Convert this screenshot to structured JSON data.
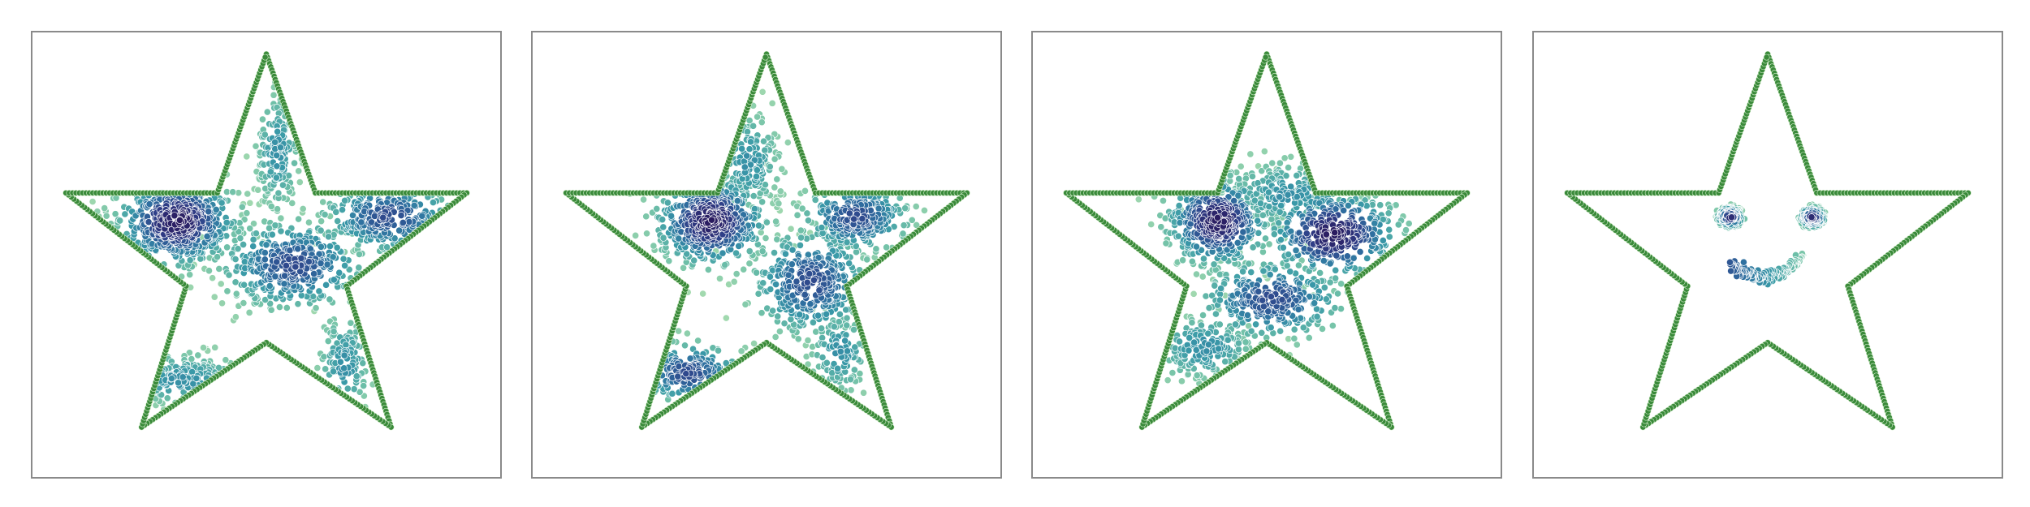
{
  "figure": {
    "background": "#ffffff",
    "frame_color": "#8a8a8a",
    "outline_color": "#3a8a3a",
    "point_colormap": [
      "#a8dcb0",
      "#6fc0a8",
      "#3a9aa8",
      "#2f6fa0",
      "#2f3f88",
      "#2a1a5e"
    ]
  },
  "chart_data": [
    {
      "type": "scatter",
      "title": "",
      "xlabel": "",
      "ylabel": "",
      "xlim": [
        -1.05,
        1.05
      ],
      "ylim": [
        -1.0,
        1.05
      ],
      "grid": false,
      "legend": "none",
      "outline": {
        "shape": "five-pointed star",
        "vertices": [
          [
            0,
            0.95
          ],
          [
            0.22,
            0.31
          ],
          [
            0.9,
            0.31
          ],
          [
            0.36,
            -0.12
          ],
          [
            0.56,
            -0.77
          ],
          [
            0,
            -0.38
          ],
          [
            -0.56,
            -0.77
          ],
          [
            -0.36,
            -0.12
          ],
          [
            -0.9,
            0.31
          ],
          [
            -0.22,
            0.31
          ]
        ]
      },
      "clusters": [
        {
          "center": [
            -0.4,
            0.18
          ],
          "spread": [
            0.13,
            0.1
          ],
          "n": 520,
          "density": "high"
        },
        {
          "center": [
            0.05,
            0.5
          ],
          "spread": [
            0.05,
            0.14
          ],
          "n": 160,
          "density": "low"
        },
        {
          "center": [
            0.55,
            0.2
          ],
          "spread": [
            0.15,
            0.08
          ],
          "n": 260,
          "density": "medium"
        },
        {
          "center": [
            0.12,
            -0.02
          ],
          "spread": [
            0.16,
            0.1
          ],
          "n": 420,
          "density": "medium"
        },
        {
          "center": [
            -0.38,
            -0.55
          ],
          "spread": [
            0.16,
            0.06
          ],
          "n": 150,
          "density": "low"
        },
        {
          "center": [
            0.35,
            -0.48
          ],
          "spread": [
            0.06,
            0.12
          ],
          "n": 110,
          "density": "low"
        }
      ]
    },
    {
      "type": "scatter",
      "title": "",
      "xlabel": "",
      "ylabel": "",
      "xlim": [
        -1.05,
        1.05
      ],
      "ylim": [
        -1.0,
        1.05
      ],
      "grid": false,
      "legend": "none",
      "outline": {
        "shape": "five-pointed star",
        "vertices": [
          [
            0,
            0.95
          ],
          [
            0.22,
            0.31
          ],
          [
            0.9,
            0.31
          ],
          [
            0.36,
            -0.12
          ],
          [
            0.56,
            -0.77
          ],
          [
            0,
            -0.38
          ],
          [
            -0.56,
            -0.77
          ],
          [
            -0.36,
            -0.12
          ],
          [
            -0.9,
            0.31
          ],
          [
            -0.22,
            0.31
          ]
        ]
      },
      "clusters": [
        {
          "center": [
            -0.25,
            0.18
          ],
          "spread": [
            0.12,
            0.1
          ],
          "n": 480,
          "density": "high"
        },
        {
          "center": [
            -0.08,
            0.45
          ],
          "spread": [
            0.07,
            0.12
          ],
          "n": 170,
          "density": "low"
        },
        {
          "center": [
            0.4,
            0.2
          ],
          "spread": [
            0.12,
            0.08
          ],
          "n": 260,
          "density": "medium"
        },
        {
          "center": [
            0.2,
            -0.1
          ],
          "spread": [
            0.13,
            0.12
          ],
          "n": 380,
          "density": "medium"
        },
        {
          "center": [
            -0.35,
            -0.52
          ],
          "spread": [
            0.12,
            0.07
          ],
          "n": 160,
          "density": "medium"
        },
        {
          "center": [
            0.33,
            -0.42
          ],
          "spread": [
            0.07,
            0.1
          ],
          "n": 110,
          "density": "low"
        }
      ]
    },
    {
      "type": "scatter",
      "title": "",
      "xlabel": "",
      "ylabel": "",
      "xlim": [
        -1.05,
        1.05
      ],
      "ylim": [
        -1.0,
        1.05
      ],
      "grid": false,
      "legend": "none",
      "outline": {
        "shape": "five-pointed star",
        "vertices": [
          [
            0,
            0.95
          ],
          [
            0.22,
            0.31
          ],
          [
            0.9,
            0.31
          ],
          [
            0.36,
            -0.12
          ],
          [
            0.56,
            -0.77
          ],
          [
            0,
            -0.38
          ],
          [
            -0.56,
            -0.77
          ],
          [
            -0.36,
            -0.12
          ],
          [
            -0.9,
            0.31
          ],
          [
            -0.22,
            0.31
          ]
        ]
      },
      "clusters": [
        {
          "center": [
            -0.22,
            0.18
          ],
          "spread": [
            0.11,
            0.1
          ],
          "n": 420,
          "density": "high"
        },
        {
          "center": [
            0.3,
            0.12
          ],
          "spread": [
            0.14,
            0.1
          ],
          "n": 360,
          "density": "high"
        },
        {
          "center": [
            0.1,
            0.3
          ],
          "spread": [
            0.16,
            0.08
          ],
          "n": 220,
          "density": "low"
        },
        {
          "center": [
            0.02,
            -0.18
          ],
          "spread": [
            0.16,
            0.09
          ],
          "n": 320,
          "density": "medium"
        },
        {
          "center": [
            -0.28,
            -0.4
          ],
          "spread": [
            0.12,
            0.08
          ],
          "n": 180,
          "density": "low"
        }
      ]
    },
    {
      "type": "scatter",
      "title": "",
      "xlabel": "",
      "ylabel": "",
      "xlim": [
        -1.05,
        1.05
      ],
      "ylim": [
        -1.0,
        1.05
      ],
      "grid": false,
      "legend": "none",
      "outline": {
        "shape": "five-pointed star",
        "vertices": [
          [
            0,
            0.95
          ],
          [
            0.22,
            0.31
          ],
          [
            0.9,
            0.31
          ],
          [
            0.36,
            -0.12
          ],
          [
            0.56,
            -0.77
          ],
          [
            0,
            -0.38
          ],
          [
            -0.56,
            -0.77
          ],
          [
            -0.36,
            -0.12
          ],
          [
            -0.9,
            0.31
          ],
          [
            -0.22,
            0.31
          ]
        ]
      },
      "features": [
        {
          "name": "left-eye",
          "center": [
            -0.17,
            0.2
          ],
          "radius": 0.07,
          "n": 180
        },
        {
          "name": "right-eye",
          "center": [
            0.2,
            0.2
          ],
          "radius": 0.07,
          "n": 180
        },
        {
          "name": "mouth",
          "center": [
            0.0,
            0.0
          ],
          "arc": [
            -0.17,
            0.16
          ],
          "depth": 0.08,
          "n": 170
        }
      ]
    }
  ]
}
